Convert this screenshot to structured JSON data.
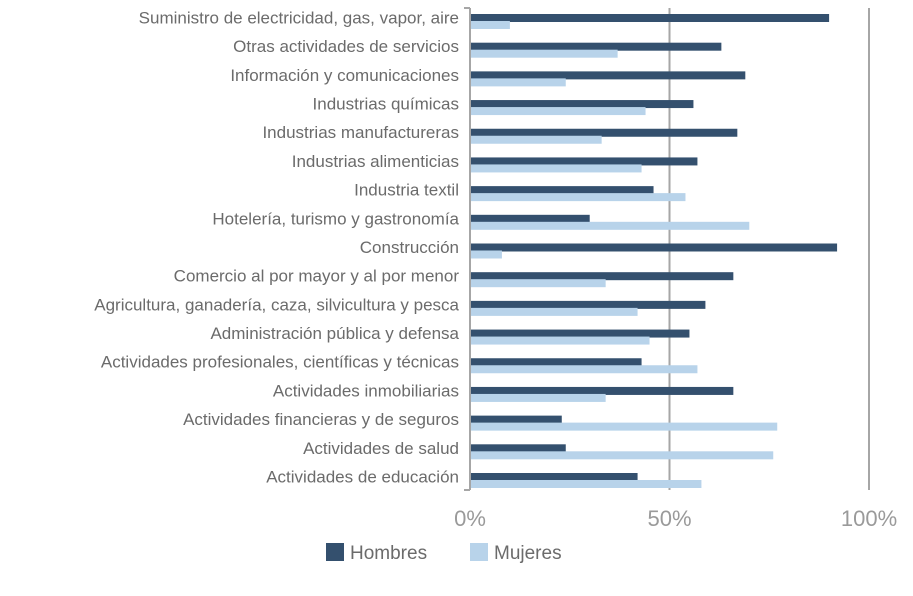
{
  "chart_data": {
    "type": "bar",
    "orientation": "horizontal",
    "categories": [
      "Suministro de electricidad, gas, vapor, aire",
      "Otras actividades de servicios",
      "Información y comunicaciones",
      "Industrias químicas",
      "Industrias manufactureras",
      "Industrias alimenticias",
      "Industria textil",
      "Hotelería, turismo y gastronomía",
      "Construcción",
      "Comercio al por mayor y al por menor",
      "Agricultura, ganadería, caza, silvicultura y pesca",
      "Administración pública y defensa",
      "Actividades profesionales, científicas y técnicas",
      "Actividades inmobiliarias",
      "Actividades financieras y de seguros",
      "Actividades de salud",
      "Actividades de educación"
    ],
    "series": [
      {
        "name": "Hombres",
        "color": "#34506e",
        "values": [
          90,
          63,
          69,
          56,
          67,
          57,
          46,
          30,
          92,
          66,
          59,
          55,
          43,
          66,
          23,
          24,
          42
        ]
      },
      {
        "name": "Mujeres",
        "color": "#b8d3ea",
        "values": [
          10,
          37,
          24,
          44,
          33,
          43,
          54,
          70,
          8,
          34,
          42,
          45,
          57,
          34,
          77,
          76,
          58
        ]
      }
    ],
    "xlim": [
      0,
      100
    ],
    "xticks": [
      {
        "value": 0,
        "label": "0%"
      },
      {
        "value": 50,
        "label": "50%"
      },
      {
        "value": 100,
        "label": "100%"
      }
    ],
    "grid": true,
    "legend": "bottom"
  }
}
